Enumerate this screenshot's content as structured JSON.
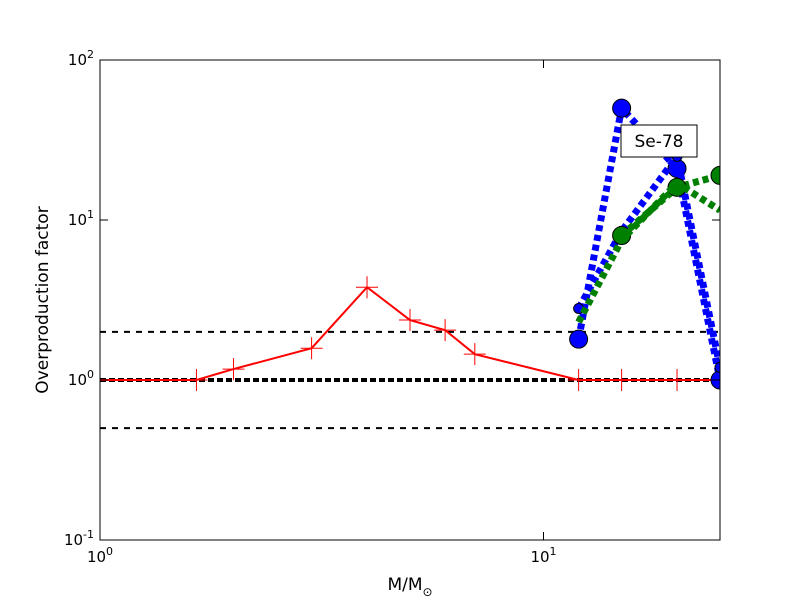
{
  "chart_data": {
    "type": "line",
    "xlabel": "M/M",
    "xlabel_subscript": "⊙",
    "ylabel": "Overproduction factor",
    "annotation": "Se-78",
    "xlog": true,
    "ylog": true,
    "xlim": [
      1,
      25
    ],
    "ylim": [
      0.1,
      100
    ],
    "xticks": [
      {
        "value": 1,
        "label": "10",
        "exponent": "0"
      },
      {
        "value": 10,
        "label": "10",
        "exponent": "1"
      }
    ],
    "yticks": [
      {
        "value": 0.1,
        "label": "10",
        "exponent": "-1"
      },
      {
        "value": 1,
        "label": "10",
        "exponent": "0"
      },
      {
        "value": 10,
        "label": "10",
        "exponent": "1"
      },
      {
        "value": 100,
        "label": "10",
        "exponent": "2"
      }
    ],
    "reference_lines": [
      2,
      1,
      0.5
    ],
    "series": [
      {
        "color": "#ff0000",
        "style": "solid",
        "marker": "plus",
        "x": [
          1,
          1.65,
          2,
          3,
          4,
          5,
          6,
          7,
          12,
          15,
          20,
          25
        ],
        "values": [
          1,
          1,
          1.17,
          1.58,
          3.8,
          2.37,
          2.05,
          1.45,
          1,
          1,
          1,
          1
        ]
      },
      {
        "color": "#0000ff",
        "style": "dotted",
        "marker": "circle",
        "x": [
          12,
          15,
          20,
          25
        ],
        "values": [
          1.8,
          50,
          21,
          1
        ]
      },
      {
        "color": "#0000ff",
        "style": "dotted",
        "marker": "small-circle",
        "x": [
          12,
          15,
          20,
          25
        ],
        "values": [
          2.8,
          8.5,
          25,
          1.2
        ]
      },
      {
        "color": "#008000",
        "style": "dotted",
        "marker": "circle",
        "x": [
          15,
          20,
          25
        ],
        "values": [
          8,
          16,
          19
        ]
      },
      {
        "color": "#008000",
        "style": "dotted",
        "marker": "none",
        "x": [
          12,
          15,
          20,
          25
        ],
        "values": [
          2.3,
          7.5,
          17,
          11.5
        ]
      }
    ]
  }
}
